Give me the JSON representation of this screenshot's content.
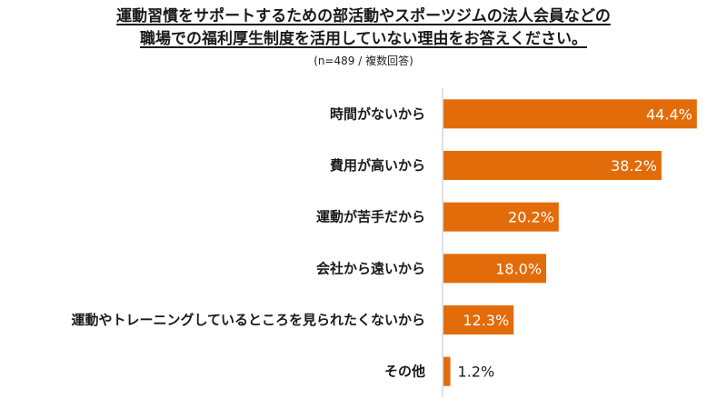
{
  "chart_data": {
    "type": "bar",
    "orientation": "horizontal",
    "title_lines": [
      "運動習慣をサポートするための部活動やスポーツジムの法人会員などの",
      "職場での福利厚生制度を活用していない理由をお答えください。"
    ],
    "subtitle": "(n=489 / 複数回答)",
    "categories": [
      "時間がないから",
      "費用が高いから",
      "運動が苦手だから",
      "会社から遠いから",
      "運動やトレーニングしているところを見られたくないから",
      "その他"
    ],
    "values": [
      44.4,
      38.2,
      20.2,
      18.0,
      12.3,
      1.2
    ],
    "value_labels": [
      "44.4%",
      "38.2%",
      "20.2%",
      "18.0%",
      "12.3%",
      "1.2%"
    ],
    "xlim": [
      0,
      50
    ],
    "grid": false,
    "legend": "none",
    "colors": {
      "bar": "#E36C0A",
      "label_inside": "#ffffff",
      "label_outside": "#1a1a1a",
      "axis": "#bfbfbf"
    }
  }
}
